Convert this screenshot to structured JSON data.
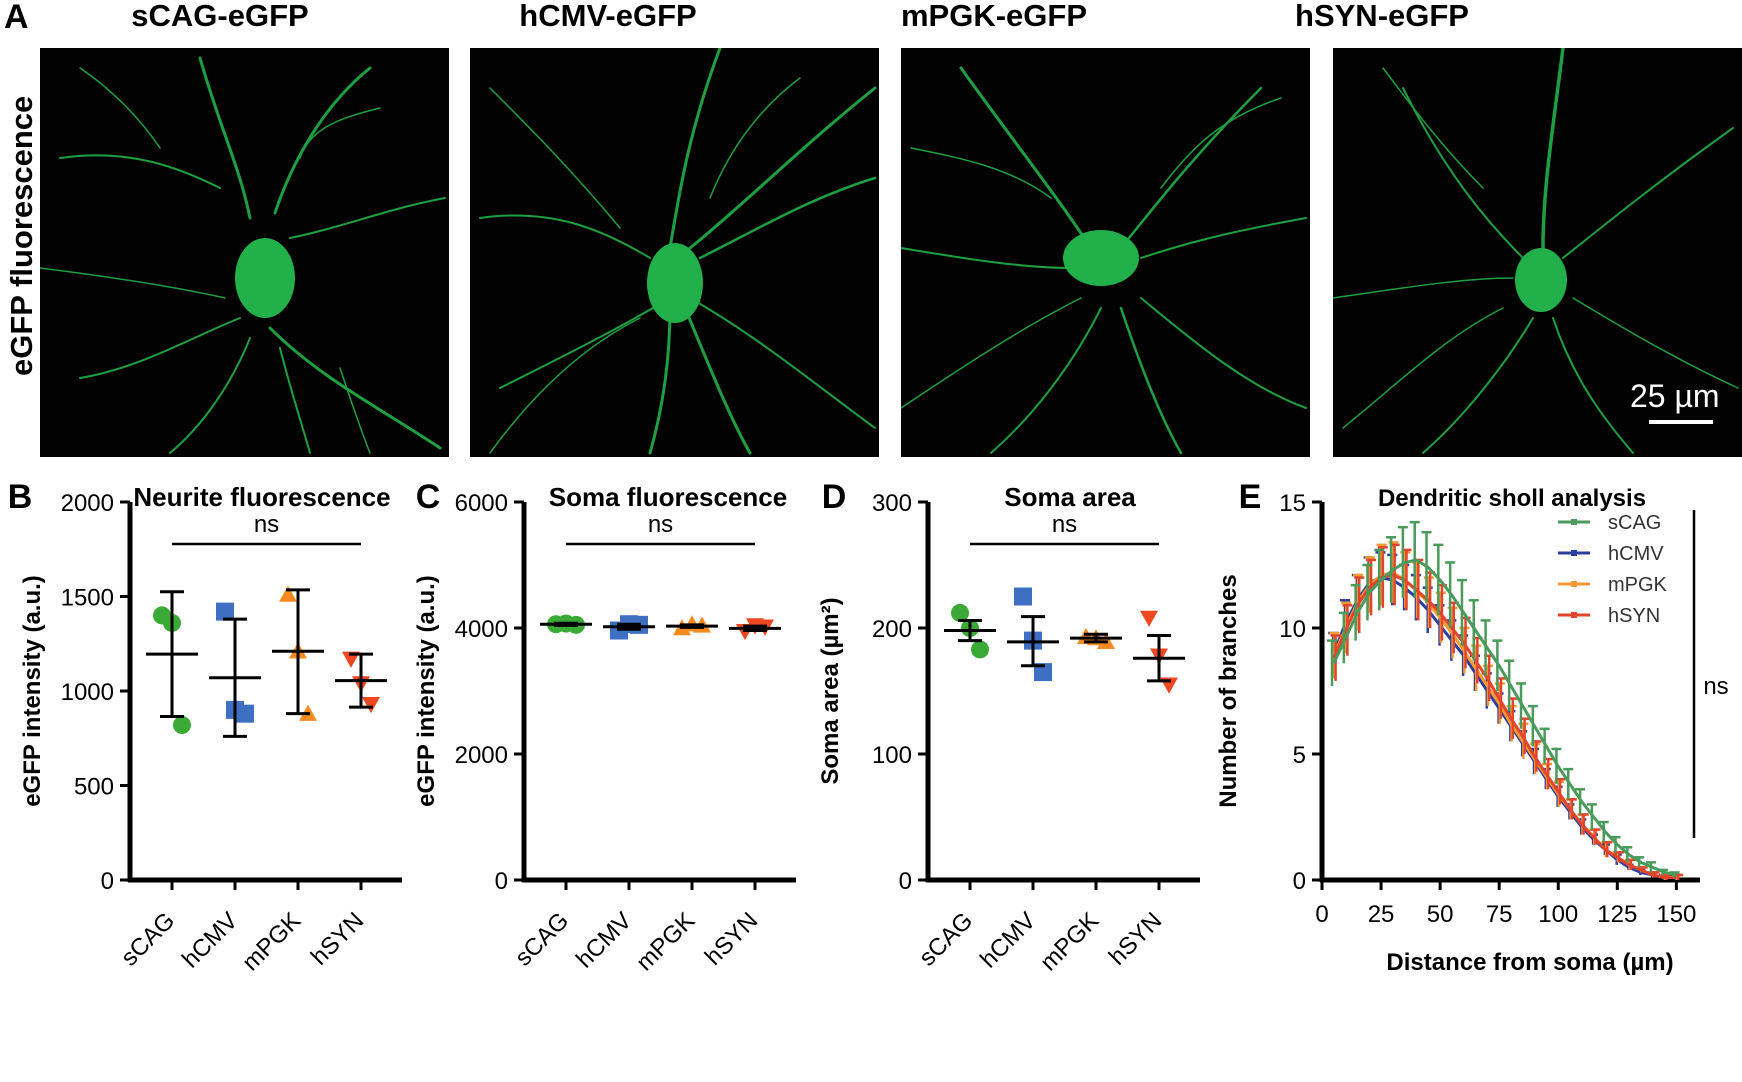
{
  "figure": {
    "panel_a_letter": "A",
    "side_label": "eGFP fluorescence",
    "columns": [
      "sCAG-eGFP",
      "hCMV-eGFP",
      "mPGK-eGFP",
      "hSYN-eGFP"
    ],
    "scale_bar_label": "25 µm",
    "colors": {
      "neuron_green": "#22b04a",
      "background": "#020202",
      "sCAG": "#3aa935",
      "hCMV": "#3f6fc1",
      "mPGK": "#f58a20",
      "hSYN": "#ee4722",
      "sholl_sCAG": "#4a9a5b",
      "sholl_hCMV": "#2d3f9e",
      "sholl_mPGK": "#f39a33",
      "sholl_hSYN": "#e2452b"
    }
  },
  "chart_data": [
    {
      "panel": "B",
      "type": "scatter",
      "title": "Neurite fluorescence",
      "ylabel": "eGFP intensity (a.u.)",
      "xlabel": "",
      "ylim": [
        0,
        2000
      ],
      "yticks": [
        0,
        500,
        1000,
        1500,
        2000
      ],
      "categories": [
        "sCAG",
        "hCMV",
        "mPGK",
        "hSYN"
      ],
      "markers": [
        "circle",
        "square",
        "triangle-up",
        "triangle-down"
      ],
      "points": [
        [
          1400,
          1360,
          820
        ],
        [
          1420,
          900,
          880
        ],
        [
          1510,
          1210,
          880
        ],
        [
          1170,
          1040,
          930
        ]
      ],
      "mean": [
        1195,
        1070,
        1210,
        1055
      ],
      "error_low": [
        865,
        760,
        880,
        915
      ],
      "error_high": [
        1525,
        1380,
        1535,
        1195
      ],
      "annotation": "ns"
    },
    {
      "panel": "C",
      "type": "scatter",
      "title": "Soma fluorescence",
      "ylabel": "eGFP intensity (a.u.)",
      "xlabel": "",
      "ylim": [
        0,
        6000
      ],
      "yticks": [
        0,
        2000,
        4000,
        6000
      ],
      "categories": [
        "sCAG",
        "hCMV",
        "mPGK",
        "hSYN"
      ],
      "markers": [
        "circle",
        "square",
        "triangle-up",
        "triangle-down"
      ],
      "points": [
        [
          4060,
          4070,
          4050
        ],
        [
          3960,
          4060,
          4050
        ],
        [
          4000,
          4060,
          4040
        ],
        [
          3950,
          4040,
          4020
        ]
      ],
      "mean": [
        4060,
        4020,
        4030,
        3995
      ],
      "error_low": [
        4040,
        3980,
        4010,
        3960
      ],
      "error_high": [
        4075,
        4060,
        4050,
        4030
      ],
      "annotation": "ns"
    },
    {
      "panel": "D",
      "type": "scatter",
      "title": "Soma area",
      "ylabel": "Soma area (µm²)",
      "xlabel": "",
      "ylim": [
        0,
        300
      ],
      "yticks": [
        0,
        100,
        200,
        300
      ],
      "categories": [
        "sCAG",
        "hCMV",
        "mPGK",
        "hSYN"
      ],
      "markers": [
        "circle",
        "square",
        "triangle-up",
        "triangle-down"
      ],
      "points": [
        [
          212,
          200,
          183
        ],
        [
          225,
          190,
          165
        ],
        [
          193,
          192,
          189
        ],
        [
          208,
          178,
          155
        ]
      ],
      "mean": [
        198,
        189,
        192,
        176
      ],
      "error_low": [
        190,
        170,
        189,
        158
      ],
      "error_high": [
        206,
        209,
        195,
        194
      ],
      "annotation": "ns"
    },
    {
      "panel": "E",
      "type": "line",
      "title": "Dendritic sholl analysis",
      "xlabel": "Distance from soma (µm)",
      "ylabel": "Number of branches",
      "xlim": [
        0,
        160
      ],
      "ylim": [
        0,
        15
      ],
      "xticks": [
        0,
        25,
        50,
        75,
        100,
        125,
        150
      ],
      "yticks": [
        0,
        5,
        10,
        15
      ],
      "x": [
        5,
        10,
        15,
        20,
        25,
        30,
        35,
        40,
        45,
        50,
        55,
        60,
        65,
        70,
        75,
        80,
        85,
        90,
        95,
        100,
        105,
        110,
        115,
        120,
        125,
        130,
        135,
        140,
        145,
        150
      ],
      "series": [
        {
          "name": "sCAG",
          "values": [
            8.6,
            9.6,
            10.6,
            11.4,
            11.9,
            12.3,
            12.6,
            12.7,
            12.4,
            11.9,
            11.3,
            10.6,
            9.9,
            9.2,
            8.5,
            7.7,
            6.9,
            6.1,
            5.3,
            4.5,
            3.8,
            3.1,
            2.5,
            1.9,
            1.4,
            1.0,
            0.7,
            0.5,
            0.3,
            0.2
          ],
          "error": [
            0.9,
            1.0,
            1.1,
            1.1,
            1.2,
            1.3,
            1.4,
            1.5,
            1.4,
            1.4,
            1.3,
            1.3,
            1.2,
            1.1,
            1.0,
            1.0,
            0.9,
            0.8,
            0.7,
            0.7,
            0.6,
            0.5,
            0.5,
            0.4,
            0.3,
            0.3,
            0.2,
            0.2,
            0.1,
            0.1
          ]
        },
        {
          "name": "hCMV",
          "values": [
            9.0,
            10.2,
            11.1,
            11.8,
            12.0,
            11.9,
            11.6,
            11.2,
            10.7,
            10.1,
            9.5,
            8.9,
            8.2,
            7.5,
            6.8,
            6.1,
            5.4,
            4.7,
            4.0,
            3.3,
            2.7,
            2.1,
            1.6,
            1.2,
            0.8,
            0.5,
            0.3,
            0.2,
            0.1,
            0.1
          ],
          "error": [
            0.8,
            0.9,
            1.0,
            1.0,
            1.0,
            1.0,
            0.9,
            0.9,
            0.9,
            0.8,
            0.8,
            0.8,
            0.7,
            0.7,
            0.6,
            0.6,
            0.5,
            0.5,
            0.4,
            0.4,
            0.3,
            0.3,
            0.2,
            0.2,
            0.2,
            0.1,
            0.1,
            0.1,
            0.1,
            0.1
          ]
        },
        {
          "name": "mPGK",
          "values": [
            8.9,
            10.0,
            11.0,
            11.7,
            12.1,
            12.2,
            11.9,
            11.5,
            11.0,
            10.4,
            9.8,
            9.1,
            8.4,
            7.7,
            7.0,
            6.2,
            5.5,
            4.8,
            4.1,
            3.4,
            2.8,
            2.2,
            1.7,
            1.2,
            0.9,
            0.6,
            0.4,
            0.2,
            0.1,
            0.1
          ],
          "error": [
            0.9,
            1.0,
            1.1,
            1.1,
            1.2,
            1.2,
            1.1,
            1.1,
            1.0,
            1.0,
            1.0,
            0.9,
            0.9,
            0.8,
            0.8,
            0.7,
            0.7,
            0.6,
            0.5,
            0.5,
            0.4,
            0.4,
            0.3,
            0.3,
            0.2,
            0.2,
            0.1,
            0.1,
            0.1,
            0.1
          ]
        },
        {
          "name": "hSYN",
          "values": [
            8.8,
            9.9,
            10.9,
            11.6,
            12.0,
            12.1,
            11.9,
            11.5,
            11.1,
            10.6,
            10.0,
            9.4,
            8.7,
            8.0,
            7.2,
            6.4,
            5.7,
            4.9,
            4.2,
            3.5,
            2.8,
            2.2,
            1.7,
            1.2,
            0.9,
            0.6,
            0.4,
            0.2,
            0.1,
            0.1
          ],
          "error": [
            0.9,
            1.0,
            1.1,
            1.1,
            1.2,
            1.2,
            1.2,
            1.2,
            1.1,
            1.1,
            1.0,
            1.0,
            0.9,
            0.9,
            0.8,
            0.8,
            0.7,
            0.6,
            0.6,
            0.5,
            0.4,
            0.4,
            0.3,
            0.3,
            0.2,
            0.2,
            0.1,
            0.1,
            0.1,
            0.1
          ]
        }
      ],
      "legend_position": "top-right",
      "annotation": "ns"
    }
  ]
}
